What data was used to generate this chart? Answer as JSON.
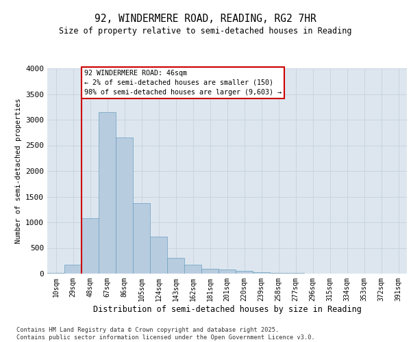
{
  "title_line1": "92, WINDERMERE ROAD, READING, RG2 7HR",
  "title_line2": "Size of property relative to semi-detached houses in Reading",
  "xlabel": "Distribution of semi-detached houses by size in Reading",
  "ylabel": "Number of semi-detached properties",
  "categories": [
    "10sqm",
    "29sqm",
    "48sqm",
    "67sqm",
    "86sqm",
    "105sqm",
    "124sqm",
    "143sqm",
    "162sqm",
    "181sqm",
    "201sqm",
    "220sqm",
    "239sqm",
    "258sqm",
    "277sqm",
    "296sqm",
    "315sqm",
    "334sqm",
    "353sqm",
    "372sqm",
    "391sqm"
  ],
  "values": [
    10,
    175,
    1075,
    3150,
    2650,
    1375,
    725,
    310,
    175,
    100,
    75,
    55,
    30,
    20,
    10,
    5,
    3,
    2,
    1,
    0,
    0
  ],
  "bar_color": "#b8ccdf",
  "bar_edge_color": "#6a9fc0",
  "property_line_x": 1.5,
  "annotation_text": "92 WINDERMERE ROAD: 46sqm\n← 2% of semi-detached houses are smaller (150)\n98% of semi-detached houses are larger (9,603) →",
  "annotation_box_color": "#ffffff",
  "annotation_box_edge": "#cc0000",
  "vline_color": "#cc0000",
  "grid_color": "#c8d4e0",
  "background_color": "#dde6ef",
  "footer_text": "Contains HM Land Registry data © Crown copyright and database right 2025.\nContains public sector information licensed under the Open Government Licence v3.0.",
  "ylim": [
    0,
    4000
  ],
  "yticks": [
    0,
    500,
    1000,
    1500,
    2000,
    2500,
    3000,
    3500,
    4000
  ]
}
